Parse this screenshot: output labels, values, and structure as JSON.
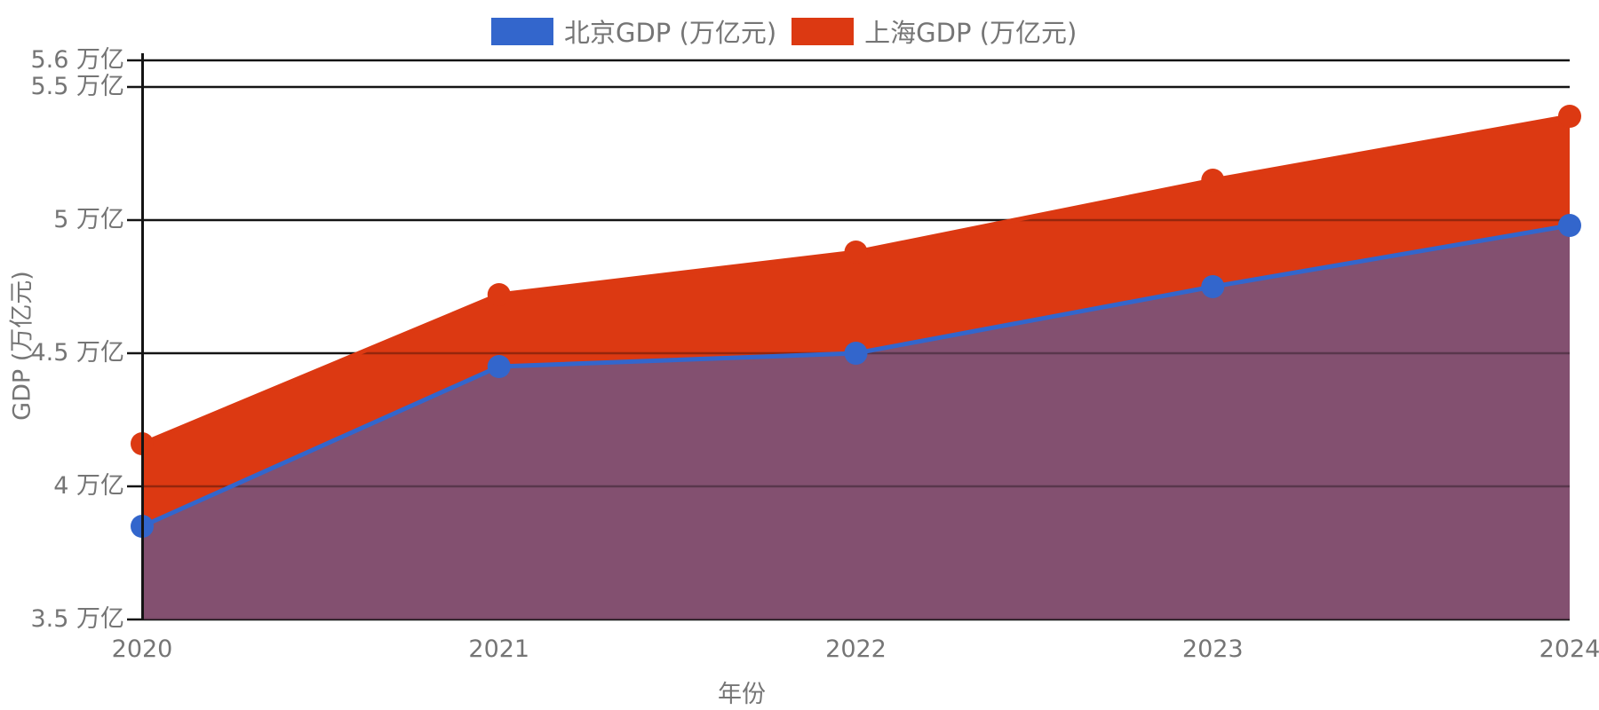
{
  "chart_data": {
    "type": "area",
    "title": "",
    "categories": [
      "2020",
      "2021",
      "2022",
      "2023",
      "2024"
    ],
    "series": [
      {
        "name": "北京GDP (万亿元)",
        "color": "#3366CC",
        "values": [
          3.85,
          4.45,
          4.5,
          4.75,
          4.98
        ]
      },
      {
        "name": "上海GDP (万亿元)",
        "color": "#DC3912",
        "values": [
          4.16,
          4.72,
          4.88,
          5.15,
          5.39
        ]
      }
    ],
    "xlabel": "年份",
    "ylabel": "GDP (万亿元)",
    "ylim": [
      3.5,
      5.6
    ],
    "yticks": [
      {
        "value": 3.5,
        "label": "3.5 万亿"
      },
      {
        "value": 4.0,
        "label": "4 万亿"
      },
      {
        "value": 4.5,
        "label": "4.5 万亿"
      },
      {
        "value": 5.0,
        "label": "5 万亿"
      },
      {
        "value": 5.5,
        "label": "5.5 万亿"
      },
      {
        "value": 5.6,
        "label": "5.6 万亿"
      }
    ],
    "grid": true,
    "legend_position": "top",
    "overlap_fill": "rgba(58,100,190,0.55)",
    "gridline_color": "#141414",
    "tick_text_color": "#757575"
  },
  "legend": {
    "items": [
      {
        "label": "北京GDP (万亿元)",
        "color": "#3366CC"
      },
      {
        "label": "上海GDP (万亿元)",
        "color": "#DC3912"
      }
    ]
  },
  "axes": {
    "x_title": "年份",
    "y_title": "GDP (万亿元)"
  }
}
